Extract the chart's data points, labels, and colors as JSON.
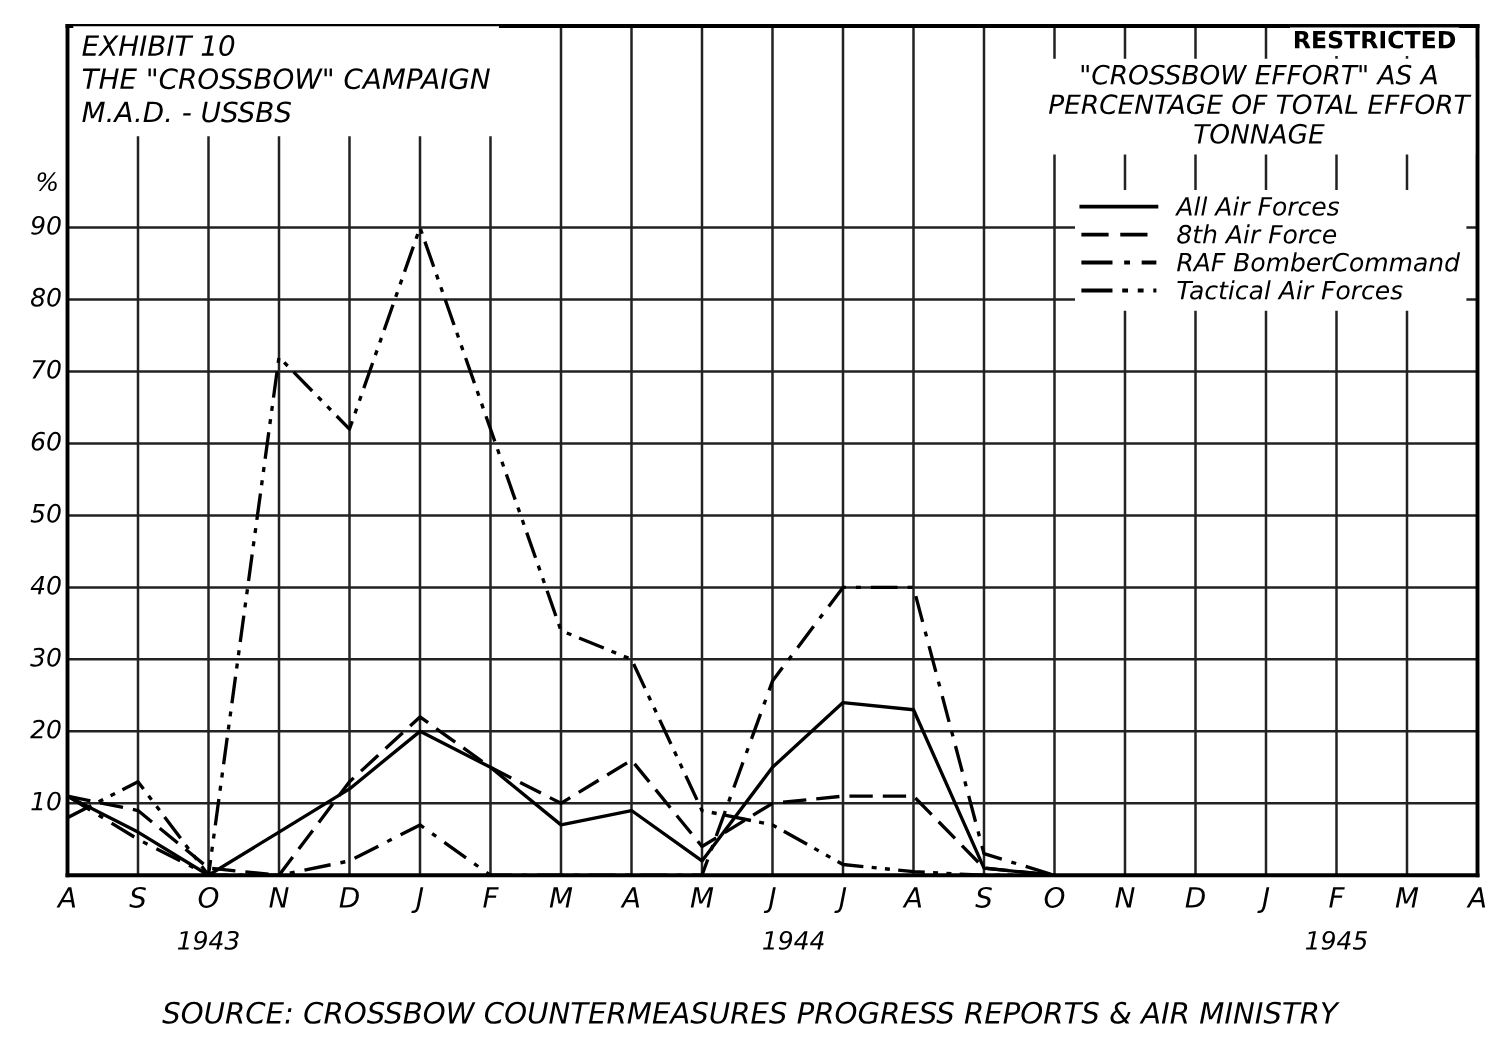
{
  "chart_data": {
    "type": "line",
    "title": "EXHIBIT 10\nTHE \"CROSSBOW\" CAMPAIGN\nM.A.D. - USSBS",
    "subtitle": "\"CROSSBOW EFFORT\" AS A\nPERCENTAGE OF TOTAL EFFORT\nTONNAGE",
    "ylabel": "%",
    "categories": [
      "A",
      "S",
      "O",
      "N",
      "D",
      "J",
      "F",
      "M",
      "A",
      "M",
      "J",
      "J",
      "A",
      "S",
      "O",
      "N",
      "D",
      "J",
      "F",
      "M",
      "A"
    ],
    "series": [
      {
        "name": "All Air Forces",
        "color": "#000000",
        "line_style": "solid",
        "values": [
          11,
          6,
          0,
          6,
          12,
          20,
          15,
          7,
          9,
          2,
          15,
          24,
          23,
          1,
          0,
          null,
          null,
          null,
          null,
          null,
          null
        ]
      },
      {
        "name": "8th Air Force",
        "color": "#000000",
        "line_style": "dashed",
        "values": [
          11,
          9,
          1,
          0,
          13,
          22,
          15,
          10,
          16,
          4,
          10,
          11,
          11,
          1,
          0,
          null,
          null,
          null,
          null,
          null,
          null
        ]
      },
      {
        "name": "RAF BomberCommand",
        "color": "#000000",
        "line_style": "dashdot",
        "values": [
          11,
          5,
          0,
          0,
          2,
          7,
          0,
          0,
          0,
          0,
          27,
          40,
          40,
          3,
          0,
          null,
          null,
          null,
          null,
          null,
          null
        ]
      },
      {
        "name": "Tactical Air Forces",
        "color": "#000000",
        "line_style": "dashdotdot",
        "values": [
          8,
          13,
          0,
          72,
          62,
          90,
          62,
          34,
          30,
          9,
          7,
          1.5,
          0.5,
          0,
          0,
          null,
          null,
          null,
          null,
          null,
          null
        ]
      }
    ],
    "ylim": [
      0,
      118
    ],
    "yticks": [
      10,
      20,
      30,
      40,
      50,
      60,
      70,
      80,
      90
    ],
    "grid": true,
    "legend": "top right",
    "annotations": [
      "1943",
      "1944",
      "1945",
      "SOURCE: CROSSBOW COUNTERMEASURES PROGRESS REPORTS & AIR MINISTRY",
      "RESTRICTED"
    ]
  }
}
